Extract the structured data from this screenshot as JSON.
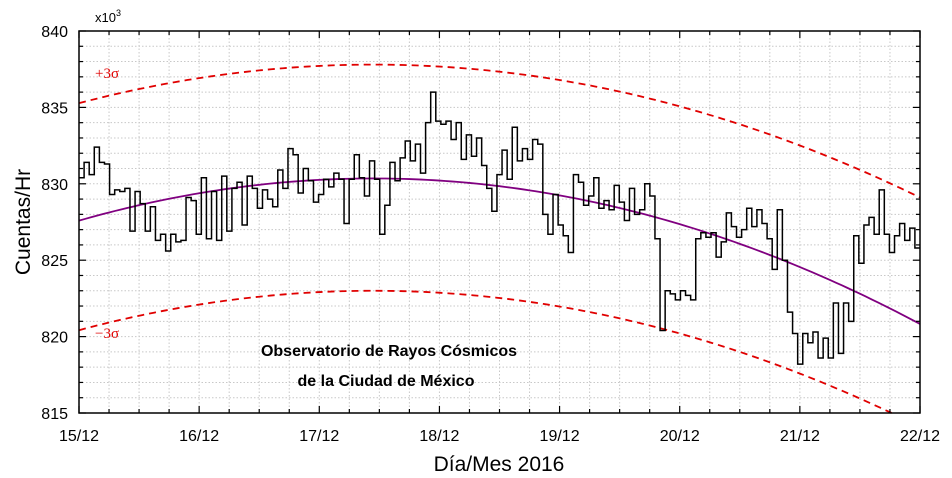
{
  "chart_data": {
    "type": "line",
    "xlabel": "Día/Mes 2016",
    "ylabel": "Cuentas/Hr",
    "y_multiplier": "x10",
    "y_multiplier_exp": "3",
    "xlim": [
      0,
      7
    ],
    "ylim": [
      815,
      840
    ],
    "x_tick_labels": [
      "15/12",
      "16/12",
      "17/12",
      "18/12",
      "19/12",
      "20/12",
      "21/12",
      "22/12"
    ],
    "y_ticks": [
      815,
      820,
      825,
      830,
      835,
      840
    ],
    "grid": true,
    "annotation_lines": [
      "Observatorio de Rayos Cósmicos",
      "de la Ciudad de México"
    ],
    "sigma_labels": {
      "plus": "+3σ",
      "minus": "−3σ"
    },
    "colors": {
      "counts": "#000000",
      "fit": "#800080",
      "sigma": "#e00000",
      "grid": "#c8c8c8"
    },
    "series": [
      {
        "style": "step",
        "x_start": 0,
        "x_step": 0.041667,
        "values": [
          830.4,
          831.4,
          830.6,
          832.4,
          831.4,
          831.3,
          829.3,
          829.6,
          829.5,
          829.7,
          826.9,
          829.5,
          828.7,
          826.9,
          828.5,
          826.3,
          826.7,
          825.6,
          826.7,
          826.2,
          826.3,
          829.1,
          828.9,
          826.7,
          830.4,
          826.4,
          829.5,
          826.3,
          830.5,
          826.9,
          829.7,
          830.1,
          827.3,
          830.5,
          829.7,
          828.4,
          829.6,
          829.0,
          828.5,
          830.9,
          829.7,
          832.3,
          831.9,
          829.4,
          831.0,
          830.2,
          828.8,
          829.3,
          830.3,
          829.8,
          830.7,
          830.3,
          827.4,
          830.3,
          831.9,
          830.4,
          829.2,
          831.5,
          830.3,
          826.7,
          828.6,
          831.4,
          830.2,
          831.7,
          832.8,
          831.5,
          832.6,
          830.7,
          834.0,
          836.0,
          834.1,
          833.9,
          834.1,
          832.9,
          834.0,
          831.6,
          833.2,
          831.8,
          833.0,
          831.2,
          829.7,
          828.2,
          830.6,
          832.2,
          830.3,
          833.7,
          831.5,
          832.3,
          831.6,
          832.9,
          832.6,
          828.0,
          826.7,
          829.3,
          827.3,
          826.6,
          825.5,
          830.6,
          830.1,
          828.6,
          829.2,
          830.4,
          828.4,
          828.9,
          828.3,
          829.9,
          828.8,
          827.6,
          829.7,
          828.0,
          828.3,
          830.0,
          829.2,
          826.4,
          820.4,
          823.0,
          822.8,
          822.4,
          823.0,
          822.7,
          822.4,
          826.4,
          826.8,
          826.5,
          826.8,
          825.2,
          826.2,
          828.1,
          827.2,
          826.5,
          827.0,
          828.4,
          827.2,
          828.3,
          827.4,
          826.4,
          824.4,
          828.3,
          825.0,
          821.6,
          820.2,
          818.2,
          820.2,
          819.6,
          820.3,
          818.6,
          819.9,
          818.6,
          822.2,
          818.9,
          822.2,
          821.0,
          826.6,
          824.8,
          827.3,
          827.8,
          826.7,
          829.6,
          826.7,
          825.5,
          826.6,
          827.4,
          826.3,
          827.1,
          825.8
        ]
      },
      {
        "name_key": "fit",
        "style": "curve",
        "vertex_x": 2.45,
        "vertex_y": 830.35,
        "curvature": 0.46
      },
      {
        "name_key": "plus3sigma",
        "style": "dashed-curve",
        "vertex_x": 2.45,
        "vertex_y": 837.8,
        "curvature": 0.42
      },
      {
        "name_key": "minus3sigma",
        "style": "dashed-curve",
        "vertex_x": 2.45,
        "vertex_y": 823.0,
        "curvature": 0.43
      }
    ]
  }
}
